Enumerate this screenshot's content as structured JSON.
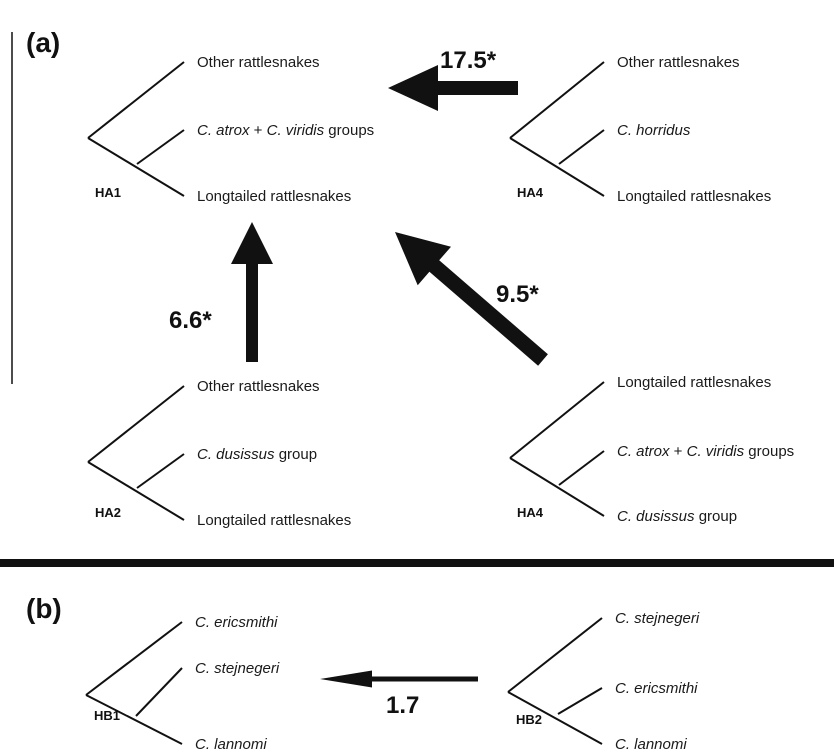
{
  "panel_a": {
    "label": "(a)",
    "trees": [
      {
        "id": "HA1",
        "leaves": [
          {
            "name": "Other rattlesnakes"
          },
          {
            "name": "C. atrox + C. viridis groups",
            "parts": [
              [
                "C. atrox",
                true
              ],
              [
                " + ",
                false
              ],
              [
                "C. viridis",
                true
              ],
              [
                " groups",
                false
              ]
            ]
          },
          {
            "name": "Longtailed rattlesnakes"
          }
        ]
      },
      {
        "id": "HA4",
        "leaves": [
          {
            "name": "Other rattlesnakes"
          },
          {
            "name": "C. horridus",
            "parts": [
              [
                "C. horridus",
                true
              ]
            ]
          },
          {
            "name": "Longtailed rattlesnakes"
          }
        ]
      },
      {
        "id": "HA2",
        "leaves": [
          {
            "name": "Other rattlesnakes"
          },
          {
            "name": "C. dusissus group",
            "parts": [
              [
                "C. dusissus",
                true
              ],
              [
                " group",
                false
              ]
            ]
          },
          {
            "name": "Longtailed rattlesnakes"
          }
        ]
      },
      {
        "id": "HA4",
        "leaves": [
          {
            "name": "Longtailed rattlesnakes"
          },
          {
            "name": "C. atrox + C. viridis groups",
            "parts": [
              [
                "C. atrox",
                true
              ],
              [
                " + ",
                false
              ],
              [
                "C. viridis",
                true
              ],
              [
                " groups",
                false
              ]
            ]
          },
          {
            "name": "C. dusissus group",
            "parts": [
              [
                "C. dusissus",
                true
              ],
              [
                " group",
                false
              ]
            ]
          }
        ]
      }
    ],
    "arrows": [
      {
        "from": "HA4",
        "to": "HA1",
        "weight": "17.5*"
      },
      {
        "from": "HA2",
        "to": "HA1",
        "weight": "6.6*"
      },
      {
        "from": "HA4",
        "to": "HA1",
        "weight": "9.5*"
      }
    ]
  },
  "panel_b": {
    "label": "(b)",
    "trees": [
      {
        "id": "HB1",
        "leaves": [
          {
            "name": "C. ericsmithi",
            "parts": [
              [
                "C. ericsmithi",
                true
              ]
            ]
          },
          {
            "name": "C. stejnegeri",
            "parts": [
              [
                "C. stejnegeri",
                true
              ]
            ]
          },
          {
            "name": "C. lannomi",
            "parts": [
              [
                "C. lannomi",
                true
              ]
            ]
          }
        ]
      },
      {
        "id": "HB2",
        "leaves": [
          {
            "name": "C. stejnegeri",
            "parts": [
              [
                "C. stejnegeri",
                true
              ]
            ]
          },
          {
            "name": "C. ericsmithi",
            "parts": [
              [
                "C. ericsmithi",
                true
              ]
            ]
          },
          {
            "name": "C. lannomi",
            "parts": [
              [
                "C. lannomi",
                true
              ]
            ]
          }
        ]
      }
    ],
    "arrows": [
      {
        "from": "HB2",
        "to": "HB1",
        "weight": "1.7"
      }
    ]
  },
  "colors": {
    "ink": "#111111",
    "background": "#ffffff"
  }
}
